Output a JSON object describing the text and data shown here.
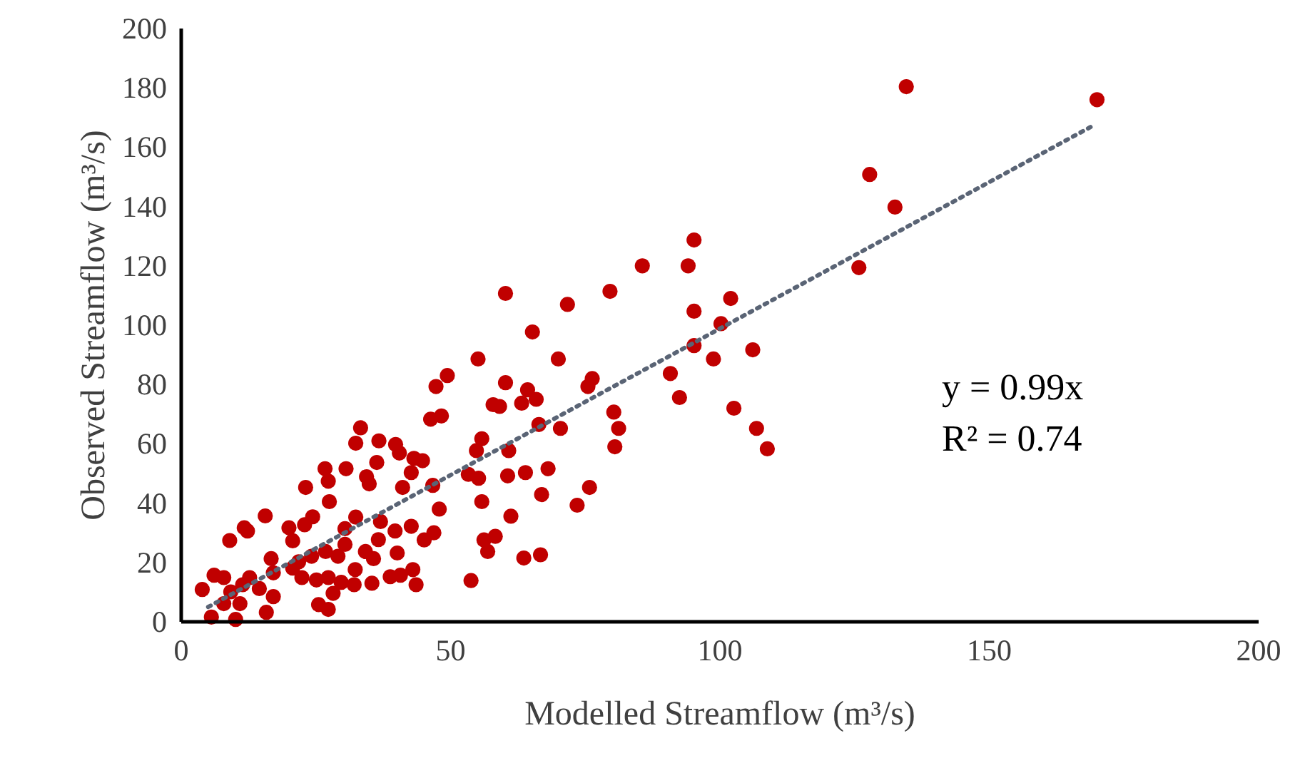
{
  "chart_data": {
    "type": "scatter",
    "xlabel": "Modelled Streamflow (m³/s)",
    "ylabel": "Observed Streamflow (m³/s)",
    "xlim": [
      0,
      200
    ],
    "ylim": [
      0,
      200
    ],
    "xticks": [
      0,
      50,
      100,
      150,
      200
    ],
    "yticks": [
      0,
      20,
      40,
      60,
      80,
      100,
      120,
      140,
      160,
      180,
      200
    ],
    "grid": false,
    "annotations": [
      "y = 0.99x",
      "R² = 0.74"
    ],
    "series": [
      {
        "color": "#c00000",
        "marker": "circle",
        "x": [
          134.6,
          170,
          127.8,
          132.5,
          125.8,
          102,
          100.2,
          106.1,
          98.8,
          102.6,
          106.8,
          108.8,
          95.2,
          85.6,
          94.1,
          60.2,
          79.6,
          71.7,
          95.2,
          65.2,
          95.2,
          55.1,
          70,
          90.8,
          92.5,
          49.4,
          47.3,
          60.2,
          64.3,
          76.3,
          75.5,
          57.9,
          59.1,
          63.2,
          65.9,
          48.3,
          46.3,
          80.3,
          81.2,
          80.5,
          66.4,
          70.4,
          55.8,
          54.8,
          60.8,
          53.3,
          55.2,
          60.6,
          63.9,
          68.1,
          46.7,
          47.9,
          55.8,
          66.9,
          75.8,
          73.5,
          61.2,
          46.9,
          56.2,
          58.3,
          56.9,
          63.6,
          66.7,
          53.8,
          33.3,
          32.4,
          36.7,
          39.8,
          40.5,
          43.2,
          44.8,
          42.7,
          36.3,
          30.6,
          26.7,
          27.3,
          34.4,
          34.9,
          23.1,
          41.1,
          27.5,
          15.6,
          11.7,
          12.3,
          9,
          20,
          22.9,
          24.4,
          20.7,
          32.4,
          30.4,
          37,
          39.7,
          42.7,
          45.1,
          40.1,
          35.7,
          32.3,
          35.4,
          38.8,
          40.7,
          43,
          43.6,
          32.1,
          27.3,
          28.2,
          25.5,
          27.3,
          29.7,
          26.8,
          29.1,
          24.2,
          22.4,
          20.7,
          16.7,
          17.1,
          17.1,
          15.8,
          14.5,
          12.7,
          10.9,
          10.1,
          5.6,
          3.9,
          6.1,
          7.9,
          9.2,
          7.9,
          11.4,
          36.6,
          34.2,
          30.4,
          25.1,
          21.8
        ],
        "values": [
          180.4,
          176,
          150.8,
          139.8,
          119.4,
          109,
          100.5,
          91.7,
          88.6,
          72,
          65.2,
          58.3,
          128.7,
          120,
          120,
          110.7,
          111.4,
          107,
          104.7,
          97.7,
          93.1,
          88.6,
          88.6,
          83.7,
          75.6,
          83,
          79.3,
          80.6,
          78.2,
          82,
          79.3,
          73.2,
          72.6,
          73.7,
          75,
          69.4,
          68.3,
          70.7,
          65.2,
          59,
          66.5,
          65.2,
          61.7,
          57.7,
          57.7,
          49.7,
          48.4,
          49.2,
          50.3,
          51.6,
          46,
          38,
          40.5,
          42.9,
          45.3,
          39.3,
          35.6,
          30,
          27.6,
          28.8,
          23.7,
          21.5,
          22.6,
          13.9,
          65.4,
          60.2,
          61,
          59.8,
          56.9,
          55.1,
          54.3,
          50.3,
          53.7,
          51.6,
          51.6,
          47.4,
          48.9,
          46.5,
          45.3,
          45.3,
          40.5,
          35.7,
          31.7,
          30.6,
          27.4,
          31.7,
          32.7,
          35.4,
          27.3,
          35.3,
          31.4,
          33.8,
          30.6,
          32.2,
          27.6,
          23.2,
          21.3,
          17.6,
          13,
          15.2,
          15.7,
          17.6,
          12.5,
          12.5,
          14.9,
          9.6,
          5.8,
          4.2,
          13.3,
          23.7,
          22.1,
          22.1,
          14.9,
          18.1,
          21.3,
          16.5,
          8.5,
          3.2,
          11.2,
          14.9,
          6.1,
          0.8,
          1.6,
          10.9,
          15.7,
          14.9,
          10.1,
          6.1,
          12.5,
          27.7,
          23.7,
          26.1,
          14.1,
          20.2
        ]
      },
      {
        "type": "line",
        "color": "#5a6475",
        "marker": "none",
        "line_style": "dotted",
        "x": [
          5,
          169
        ],
        "values": [
          5,
          167
        ]
      }
    ]
  }
}
